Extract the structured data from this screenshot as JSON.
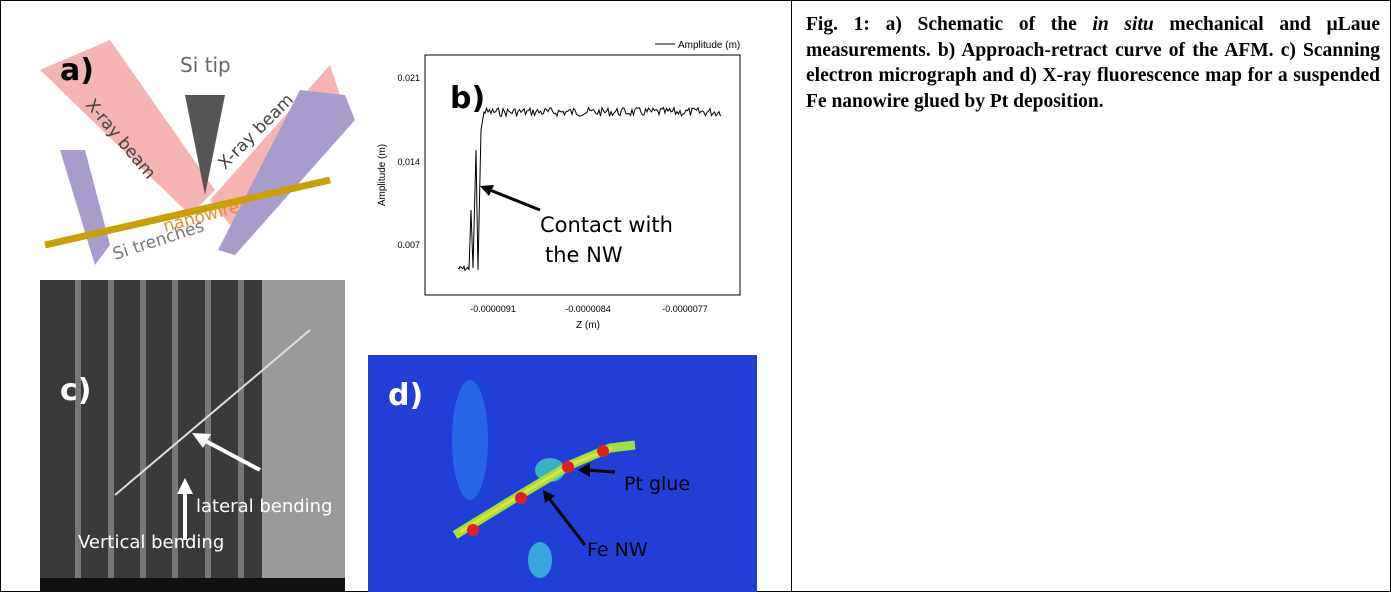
{
  "panel_a": {
    "label": "a)",
    "tip": "Si tip",
    "beam_left": "X-ray beam",
    "beam_right": "X-ray beam",
    "nanowire": "nanowire",
    "trenches": "Si trenches"
  },
  "panel_b": {
    "label": "b)",
    "legend": "Amplitude (m)",
    "y_axis_label": "Amplitude (m)",
    "x_axis_label": "Z (m)",
    "yticks": [
      "0.021",
      "0.014",
      "0.007"
    ],
    "xticks": [
      "-0.0000091",
      "-0.0000084",
      "-0.0000077"
    ],
    "annotation": [
      "Contact with",
      "the NW"
    ]
  },
  "panel_c": {
    "label": "c)",
    "lateral": "lateral bending",
    "vertical": "Vertical bending"
  },
  "panel_d": {
    "label": "d)",
    "pt": "Pt glue",
    "fe": "Fe NW"
  },
  "caption": {
    "before": "Fig. 1: a) Schematic of the ",
    "italic": "in situ",
    "after": " mechanical and µLaue measurements. b) Approach-retract curve of the AFM. c) Scanning electron micrograph and d) X-ray fluorescence map for a suspended Fe nanowire glued by Pt deposition."
  }
}
